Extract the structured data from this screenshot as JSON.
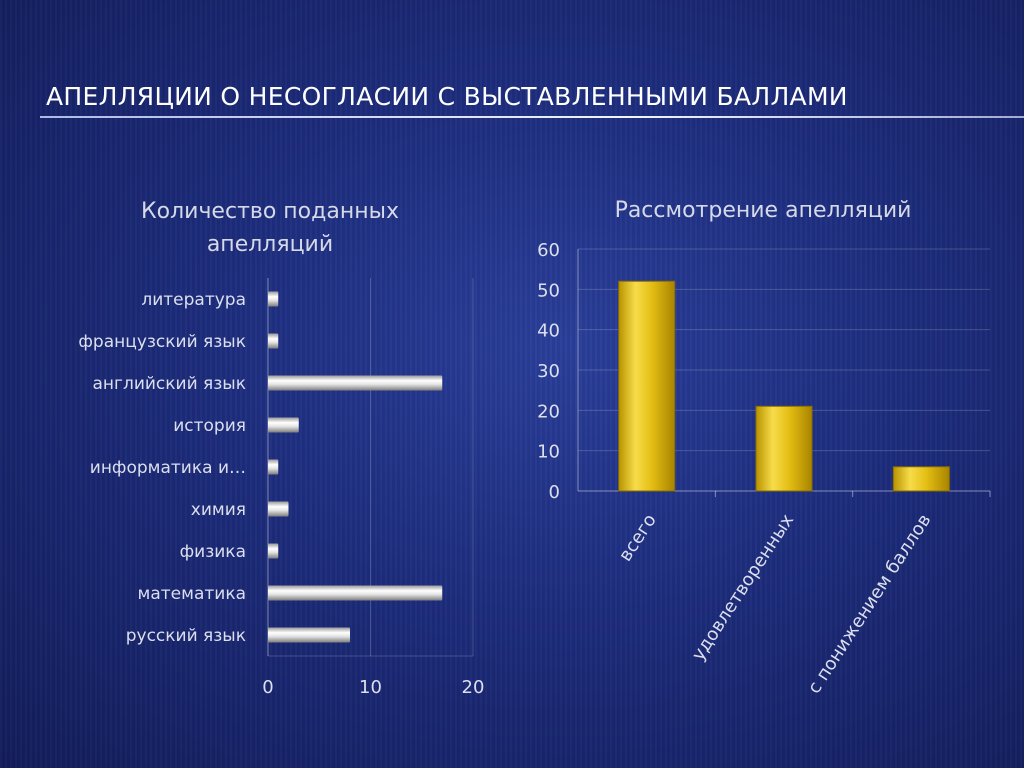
{
  "slide": {
    "title": "АПЕЛЛЯЦИИ О НЕСОГЛАСИИ С ВЫСТАВЛЕННЫМИ БАЛЛАМИ"
  },
  "colors": {
    "bar_silver": "#d9d9d9",
    "bar_gold": "#e8c317"
  },
  "chart_data": [
    {
      "type": "bar",
      "orientation": "horizontal",
      "title_lines": [
        "Количество поданных",
        "апелляций"
      ],
      "categories": [
        "литература",
        "французский язык",
        "английский язык",
        "история",
        "информатика и…",
        "химия",
        "физика",
        "математика",
        "русский язык"
      ],
      "values": [
        1,
        1,
        17,
        3,
        1,
        2,
        1,
        17,
        8
      ],
      "xlim": [
        0,
        20
      ],
      "xticks": [
        0,
        10,
        20
      ],
      "grid": true
    },
    {
      "type": "bar",
      "orientation": "vertical",
      "title": "Рассмотрение апелляций",
      "categories": [
        "всего",
        "удовлетворенных",
        "с понижением баллов"
      ],
      "values": [
        52,
        21,
        6
      ],
      "ylim": [
        0,
        60
      ],
      "yticks": [
        0,
        10,
        20,
        30,
        40,
        50,
        60
      ],
      "grid": true
    }
  ]
}
